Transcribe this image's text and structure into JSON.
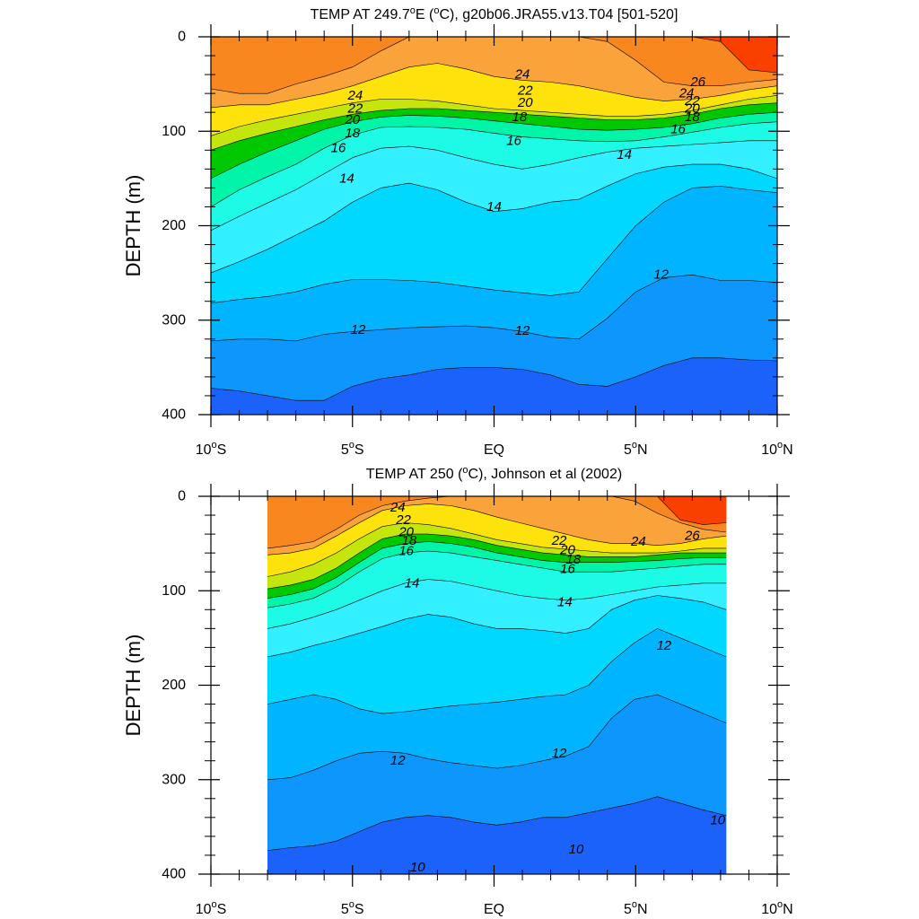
{
  "chart_data": [
    {
      "type": "contour",
      "title": "TEMP AT 249.7°E (°C), g20b06.JRA55.v13.T04 [501-520]",
      "title_parts": {
        "pre": "TEMP AT 249.7",
        "deg1": "o",
        "mid": "E (",
        "deg2": "o",
        "post": "C), g20b06.JRA55.v13.T04 [501-520]"
      },
      "ylabel": "DEPTH (m)",
      "xlim": [
        -10,
        10
      ],
      "ylim": [
        0,
        400
      ],
      "y_reversed": true,
      "data_xlim": [
        -10,
        10
      ],
      "x_ticks": [
        {
          "value": -10,
          "num": "10",
          "deg": "o",
          "hem": "S"
        },
        {
          "value": -5,
          "num": "5",
          "deg": "o",
          "hem": "S"
        },
        {
          "value": 0,
          "num": "EQ",
          "deg": "",
          "hem": ""
        },
        {
          "value": 5,
          "num": "5",
          "deg": "o",
          "hem": "N"
        },
        {
          "value": 10,
          "num": "10",
          "deg": "o",
          "hem": "N"
        }
      ],
      "y_ticks": [
        "0",
        "100",
        "200",
        "300",
        "400"
      ],
      "y_tick_values": [
        0,
        100,
        200,
        300,
        400
      ],
      "depth_contours": [
        {
          "level": 26,
          "color": "#fa4000",
          "depths": [
            0,
            0,
            0,
            0,
            0,
            0,
            0,
            0,
            0,
            0,
            0,
            0,
            0,
            0,
            0,
            0,
            0,
            0,
            5,
            35,
            38
          ]
        },
        {
          "level": 25,
          "color": "#f8871f",
          "depths": [
            55,
            60,
            60,
            50,
            42,
            32,
            15,
            0,
            0,
            0,
            0,
            0,
            0,
            0,
            5,
            25,
            48,
            52,
            52,
            48,
            45
          ]
        },
        {
          "level": 24,
          "color": "#f9a33a",
          "depths": [
            75,
            72,
            72,
            66,
            60,
            52,
            42,
            32,
            28,
            34,
            42,
            46,
            48,
            52,
            58,
            64,
            68,
            66,
            62,
            56,
            52
          ]
        },
        {
          "level": 22,
          "color": "#fde20c",
          "depths": [
            105,
            95,
            88,
            82,
            76,
            70,
            66,
            66,
            68,
            72,
            76,
            78,
            80,
            82,
            84,
            84,
            82,
            78,
            72,
            66,
            62
          ]
        },
        {
          "level": 20,
          "color": "#c5e60c",
          "depths": [
            120,
            110,
            102,
            95,
            88,
            82,
            78,
            76,
            76,
            78,
            80,
            82,
            84,
            86,
            88,
            88,
            86,
            82,
            76,
            72,
            70
          ]
        },
        {
          "level": 18,
          "color": "#00c800",
          "depths": [
            150,
            135,
            122,
            110,
            98,
            90,
            85,
            83,
            84,
            86,
            89,
            92,
            95,
            98,
            99,
            98,
            96,
            92,
            86,
            82,
            80
          ]
        },
        {
          "level": 16,
          "color": "#00f5a8",
          "depths": [
            180,
            162,
            148,
            135,
            118,
            104,
            96,
            95,
            96,
            98,
            102,
            106,
            108,
            110,
            111,
            110,
            106,
            101,
            96,
            92,
            90
          ]
        },
        {
          "level": 15,
          "color": "#1dfbe6",
          "depths": [
            205,
            190,
            176,
            162,
            145,
            128,
            118,
            116,
            120,
            128,
            135,
            140,
            135,
            128,
            122,
            118,
            116,
            114,
            112,
            110,
            110
          ]
        },
        {
          "level": 14,
          "color": "#32f0ff",
          "depths": [
            250,
            238,
            225,
            210,
            195,
            175,
            160,
            155,
            162,
            175,
            185,
            182,
            175,
            172,
            158,
            145,
            138,
            135,
            135,
            140,
            150
          ]
        },
        {
          "level": 13,
          "color": "#00d8ff",
          "depths": [
            282,
            278,
            275,
            270,
            262,
            257,
            257,
            258,
            260,
            264,
            268,
            271,
            274,
            270,
            235,
            200,
            175,
            160,
            158,
            162,
            165
          ]
        },
        {
          "level": 12,
          "color": "#00b4ff",
          "depths": [
            322,
            320,
            320,
            322,
            315,
            312,
            310,
            308,
            307,
            306,
            308,
            312,
            318,
            320,
            298,
            270,
            255,
            252,
            258,
            258,
            260
          ]
        },
        {
          "level": 11,
          "color": "#0d96fb",
          "depths": [
            372,
            375,
            380,
            385,
            385,
            370,
            362,
            358,
            352,
            350,
            350,
            352,
            358,
            368,
            370,
            360,
            348,
            340,
            340,
            342,
            343
          ]
        },
        {
          "level": 10,
          "color": "#1a62fa",
          "depths": [
            400,
            400,
            400,
            400,
            400,
            400,
            400,
            400,
            400,
            400,
            400,
            400,
            400,
            400,
            400,
            400,
            400,
            400,
            400,
            400,
            400
          ]
        }
      ],
      "deep_fill_color": "#1a62fa",
      "contour_labels": [
        {
          "text": "24",
          "x": -4.9,
          "y": 62
        },
        {
          "text": "22",
          "x": -4.9,
          "y": 76
        },
        {
          "text": "20",
          "x": -5.0,
          "y": 88
        },
        {
          "text": "18",
          "x": -5.0,
          "y": 102
        },
        {
          "text": "16",
          "x": -5.5,
          "y": 118
        },
        {
          "text": "14",
          "x": -5.2,
          "y": 150
        },
        {
          "text": "24",
          "x": 1.0,
          "y": 40
        },
        {
          "text": "22",
          "x": 1.1,
          "y": 57
        },
        {
          "text": "20",
          "x": 1.1,
          "y": 70
        },
        {
          "text": "18",
          "x": 0.9,
          "y": 85
        },
        {
          "text": "16",
          "x": 0.7,
          "y": 110
        },
        {
          "text": "14",
          "x": 0.0,
          "y": 180
        },
        {
          "text": "14",
          "x": 4.6,
          "y": 125
        },
        {
          "text": "26",
          "x": 7.2,
          "y": 48
        },
        {
          "text": "24",
          "x": 6.8,
          "y": 60
        },
        {
          "text": "22",
          "x": 7.0,
          "y": 68
        },
        {
          "text": "20",
          "x": 7.0,
          "y": 76
        },
        {
          "text": "18",
          "x": 7.0,
          "y": 85
        },
        {
          "text": "16",
          "x": 6.5,
          "y": 98
        },
        {
          "text": "12",
          "x": 5.9,
          "y": 252
        },
        {
          "text": "12",
          "x": -4.8,
          "y": 310
        },
        {
          "text": "12",
          "x": 1.0,
          "y": 311
        }
      ]
    },
    {
      "type": "contour",
      "title": "TEMP AT 250 (°C), Johnson et al (2002)",
      "title_parts": {
        "pre": "TEMP AT 250 (",
        "deg1": "o",
        "mid": "C), Johnson et al (2002)",
        "deg2": "",
        "post": ""
      },
      "ylabel": "DEPTH (m)",
      "xlim": [
        -10,
        10
      ],
      "ylim": [
        0,
        400
      ],
      "y_reversed": true,
      "data_xlim": [
        -8,
        8.2
      ],
      "x_ticks": [
        {
          "value": -10,
          "num": "10",
          "deg": "o",
          "hem": "S"
        },
        {
          "value": -5,
          "num": "5",
          "deg": "o",
          "hem": "S"
        },
        {
          "value": 0,
          "num": "EQ",
          "deg": "",
          "hem": ""
        },
        {
          "value": 5,
          "num": "5",
          "deg": "o",
          "hem": "N"
        },
        {
          "value": 10,
          "num": "10",
          "deg": "o",
          "hem": "N"
        }
      ],
      "y_ticks": [
        "0",
        "100",
        "200",
        "300",
        "400"
      ],
      "y_tick_values": [
        0,
        100,
        200,
        300,
        400
      ],
      "depth_contours": [
        {
          "level": 26,
          "color": "#fa4000",
          "depths": [
            0,
            0,
            0,
            0,
            0,
            0,
            0,
            0,
            0,
            0,
            0,
            0,
            0,
            0,
            0,
            0,
            0,
            0,
            25,
            30,
            28
          ]
        },
        {
          "level": 25,
          "color": "#f8871f",
          "depths": [
            55,
            52,
            48,
            35,
            20,
            10,
            5,
            2,
            0,
            0,
            0,
            0,
            0,
            0,
            0,
            0,
            5,
            18,
            28,
            35,
            38
          ]
        },
        {
          "level": 24,
          "color": "#f9a33a",
          "depths": [
            62,
            60,
            55,
            42,
            28,
            15,
            10,
            8,
            10,
            15,
            22,
            28,
            34,
            40,
            46,
            50,
            50,
            52,
            50,
            45,
            42
          ]
        },
        {
          "level": 22,
          "color": "#fde20c",
          "depths": [
            85,
            80,
            72,
            60,
            45,
            32,
            28,
            30,
            34,
            40,
            46,
            50,
            54,
            56,
            58,
            60,
            60,
            60,
            58,
            55,
            55
          ]
        },
        {
          "level": 20,
          "color": "#c5e60c",
          "depths": [
            98,
            94,
            88,
            76,
            60,
            45,
            40,
            40,
            42,
            46,
            52,
            56,
            60,
            62,
            64,
            64,
            64,
            62,
            60,
            60,
            60
          ]
        },
        {
          "level": 18,
          "color": "#00c800",
          "depths": [
            108,
            104,
            98,
            86,
            70,
            55,
            50,
            48,
            50,
            54,
            60,
            64,
            68,
            70,
            70,
            70,
            69,
            68,
            66,
            65,
            65
          ]
        },
        {
          "level": 16,
          "color": "#00f5a8",
          "depths": [
            118,
            114,
            108,
            96,
            80,
            66,
            60,
            58,
            60,
            64,
            68,
            72,
            76,
            80,
            80,
            80,
            78,
            76,
            74,
            72,
            72
          ]
        },
        {
          "level": 15,
          "color": "#1dfbe6",
          "depths": [
            140,
            135,
            128,
            120,
            110,
            100,
            92,
            88,
            90,
            95,
            100,
            105,
            108,
            110,
            108,
            104,
            100,
            96,
            94,
            92,
            92
          ]
        },
        {
          "level": 14,
          "color": "#32f0ff",
          "depths": [
            170,
            165,
            158,
            152,
            145,
            138,
            130,
            125,
            128,
            135,
            140,
            140,
            142,
            145,
            140,
            120,
            110,
            105,
            108,
            112,
            120
          ]
        },
        {
          "level": 13,
          "color": "#00d8ff",
          "depths": [
            220,
            215,
            210,
            215,
            225,
            230,
            228,
            225,
            222,
            220,
            218,
            215,
            212,
            210,
            200,
            175,
            155,
            140,
            150,
            160,
            170
          ]
        },
        {
          "level": 12,
          "color": "#00b4ff",
          "depths": [
            300,
            298,
            290,
            280,
            272,
            270,
            272,
            278,
            282,
            285,
            288,
            285,
            280,
            275,
            265,
            235,
            215,
            210,
            220,
            230,
            240
          ]
        },
        {
          "level": 11,
          "color": "#0d96fb",
          "depths": [
            375,
            372,
            370,
            365,
            355,
            345,
            340,
            338,
            340,
            345,
            348,
            345,
            340,
            340,
            335,
            330,
            325,
            318,
            325,
            332,
            338
          ]
        },
        {
          "level": 10,
          "color": "#1a62fa",
          "depths": [
            400,
            400,
            400,
            400,
            400,
            400,
            400,
            400,
            400,
            400,
            400,
            400,
            400,
            400,
            400,
            400,
            400,
            400,
            400,
            400,
            400
          ]
        }
      ],
      "deep_fill_color": "#1a62fa",
      "contour_labels": [
        {
          "text": "24",
          "x": -3.4,
          "y": 12
        },
        {
          "text": "22",
          "x": -3.2,
          "y": 25
        },
        {
          "text": "20",
          "x": -3.1,
          "y": 38
        },
        {
          "text": "18",
          "x": -3.0,
          "y": 47
        },
        {
          "text": "16",
          "x": -3.1,
          "y": 58
        },
        {
          "text": "14",
          "x": -2.9,
          "y": 92
        },
        {
          "text": "22",
          "x": 2.3,
          "y": 47
        },
        {
          "text": "20",
          "x": 2.6,
          "y": 57
        },
        {
          "text": "18",
          "x": 2.8,
          "y": 67
        },
        {
          "text": "16",
          "x": 2.6,
          "y": 77
        },
        {
          "text": "14",
          "x": 2.5,
          "y": 112
        },
        {
          "text": "24",
          "x": 5.1,
          "y": 48
        },
        {
          "text": "26",
          "x": 7.0,
          "y": 42
        },
        {
          "text": "12",
          "x": 6.0,
          "y": 158
        },
        {
          "text": "12",
          "x": -3.4,
          "y": 280
        },
        {
          "text": "12",
          "x": 2.3,
          "y": 272
        },
        {
          "text": "10",
          "x": 7.9,
          "y": 343
        },
        {
          "text": "10",
          "x": 2.9,
          "y": 374
        },
        {
          "text": "10",
          "x": -2.7,
          "y": 393
        }
      ]
    }
  ]
}
